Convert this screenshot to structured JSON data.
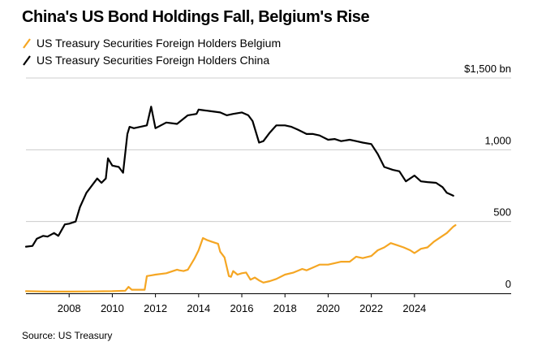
{
  "title": "China's US Bond Holdings Fall, Belgium's Rise",
  "source": "Source: US Treasury",
  "colors": {
    "belgium": "#f5a623",
    "china": "#000000",
    "grid": "#cccccc"
  },
  "chart_data": {
    "type": "line",
    "title": "China's US Bond Holdings Fall, Belgium's Rise",
    "xlabel": "",
    "ylabel": "",
    "xlim": [
      2006.0,
      2026.6
    ],
    "ylim": [
      0,
      1500
    ],
    "x_ticks": [
      "2008",
      "2010",
      "2012",
      "2014",
      "2016",
      "2018",
      "2020",
      "2022",
      "2024"
    ],
    "y_ticks": [
      {
        "value": 0,
        "label": "0"
      },
      {
        "value": 500,
        "label": "500"
      },
      {
        "value": 1000,
        "label": "1,000"
      },
      {
        "value": 1500,
        "label": "$1,500 bn"
      }
    ],
    "series": [
      {
        "name": "US Treasury Securities Foreign Holders Belgium",
        "color": "#f5a623",
        "x": [
          2006.0,
          2007.0,
          2008.0,
          2009.0,
          2010.0,
          2010.6,
          2010.75,
          2010.9,
          2011.0,
          2011.5,
          2011.6,
          2011.8,
          2012.0,
          2012.5,
          2013.0,
          2013.1,
          2013.3,
          2013.5,
          2013.8,
          2014.0,
          2014.2,
          2014.4,
          2014.6,
          2014.9,
          2015.0,
          2015.2,
          2015.4,
          2015.5,
          2015.6,
          2015.8,
          2016.0,
          2016.2,
          2016.4,
          2016.6,
          2016.8,
          2017.0,
          2017.3,
          2017.6,
          2018.0,
          2018.4,
          2018.8,
          2019.0,
          2019.3,
          2019.6,
          2020.0,
          2020.3,
          2020.6,
          2021.0,
          2021.3,
          2021.6,
          2022.0,
          2022.3,
          2022.6,
          2022.9,
          2023.2,
          2023.5,
          2023.8,
          2024.0,
          2024.3,
          2024.6,
          2024.9,
          2025.2,
          2025.5,
          2025.8,
          2025.9
        ],
        "values": [
          15,
          12,
          12,
          13,
          15,
          18,
          45,
          25,
          25,
          25,
          120,
          125,
          130,
          140,
          165,
          160,
          155,
          165,
          240,
          300,
          385,
          370,
          360,
          345,
          290,
          250,
          120,
          115,
          155,
          130,
          140,
          145,
          95,
          110,
          90,
          75,
          85,
          100,
          130,
          145,
          170,
          160,
          180,
          200,
          200,
          210,
          220,
          220,
          255,
          245,
          260,
          300,
          320,
          350,
          335,
          320,
          300,
          280,
          310,
          320,
          360,
          390,
          420,
          465,
          475
        ]
      },
      {
        "name": "US Treasury Securities Foreign Holders China",
        "color": "#000000",
        "x": [
          2006.0,
          2006.3,
          2006.5,
          2006.8,
          2007.0,
          2007.3,
          2007.5,
          2007.8,
          2008.0,
          2008.3,
          2008.5,
          2008.8,
          2009.0,
          2009.3,
          2009.5,
          2009.7,
          2009.8,
          2010.0,
          2010.3,
          2010.5,
          2010.7,
          2010.8,
          2011.0,
          2011.3,
          2011.6,
          2011.8,
          2012.0,
          2012.5,
          2013.0,
          2013.5,
          2013.9,
          2014.0,
          2014.5,
          2015.0,
          2015.3,
          2015.6,
          2016.0,
          2016.3,
          2016.5,
          2016.8,
          2017.0,
          2017.3,
          2017.6,
          2018.0,
          2018.3,
          2018.6,
          2019.0,
          2019.3,
          2019.6,
          2020.0,
          2020.3,
          2020.6,
          2021.0,
          2021.3,
          2021.6,
          2022.0,
          2022.3,
          2022.6,
          2023.0,
          2023.3,
          2023.6,
          2024.0,
          2024.3,
          2024.6,
          2025.0,
          2025.3,
          2025.5,
          2025.8
        ],
        "values": [
          325,
          330,
          380,
          400,
          395,
          420,
          400,
          480,
          485,
          500,
          600,
          700,
          740,
          800,
          770,
          800,
          940,
          890,
          880,
          840,
          1110,
          1160,
          1150,
          1160,
          1170,
          1300,
          1150,
          1190,
          1180,
          1240,
          1250,
          1280,
          1270,
          1260,
          1240,
          1250,
          1260,
          1240,
          1200,
          1050,
          1060,
          1120,
          1170,
          1170,
          1160,
          1140,
          1110,
          1110,
          1100,
          1070,
          1075,
          1060,
          1070,
          1060,
          1050,
          1040,
          970,
          880,
          860,
          850,
          780,
          820,
          780,
          775,
          770,
          740,
          700,
          680
        ]
      }
    ]
  }
}
